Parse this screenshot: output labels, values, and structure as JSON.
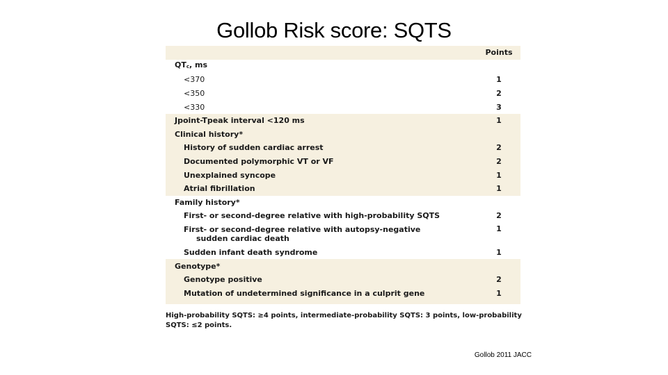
{
  "title": "Gollob Risk score: SQTS",
  "header": {
    "points_label": "Points"
  },
  "qtc": {
    "label_main": "QT",
    "label_sub": "c",
    "label_unit": ", ms",
    "items": [
      {
        "label": "<370",
        "points": "1"
      },
      {
        "label": "<350",
        "points": "2"
      },
      {
        "label": "<330",
        "points": "3"
      }
    ]
  },
  "jpoint": {
    "label": "Jpoint-Tpeak interval <120 ms",
    "points": "1"
  },
  "clinical": {
    "label": "Clinical history*",
    "items": [
      {
        "label": "History of sudden cardiac arrest",
        "points": "2"
      },
      {
        "label": "Documented polymorphic VT or VF",
        "points": "2"
      },
      {
        "label": "Unexplained syncope",
        "points": "1"
      },
      {
        "label": "Atrial fibrillation",
        "points": "1"
      }
    ]
  },
  "family": {
    "label": "Family history*",
    "items": [
      {
        "label": "First- or second-degree relative with high-probability SQTS",
        "points": "2"
      },
      {
        "label": "First- or second-degree relative with autopsy-negative",
        "label_cont": "sudden cardiac death",
        "points": "1"
      },
      {
        "label": "Sudden infant death syndrome",
        "points": "1"
      }
    ]
  },
  "genotype": {
    "label": "Genotype*",
    "items": [
      {
        "label": "Genotype positive",
        "points": "2"
      },
      {
        "label": "Mutation of undetermined significance in a culprit gene",
        "points": "1"
      }
    ]
  },
  "footnote": "High-probability SQTS: ≥4 points, intermediate-probability SQTS: 3 points, low-probability SQTS: ≤2 points.",
  "citation": "Gollob 2011 JACC"
}
